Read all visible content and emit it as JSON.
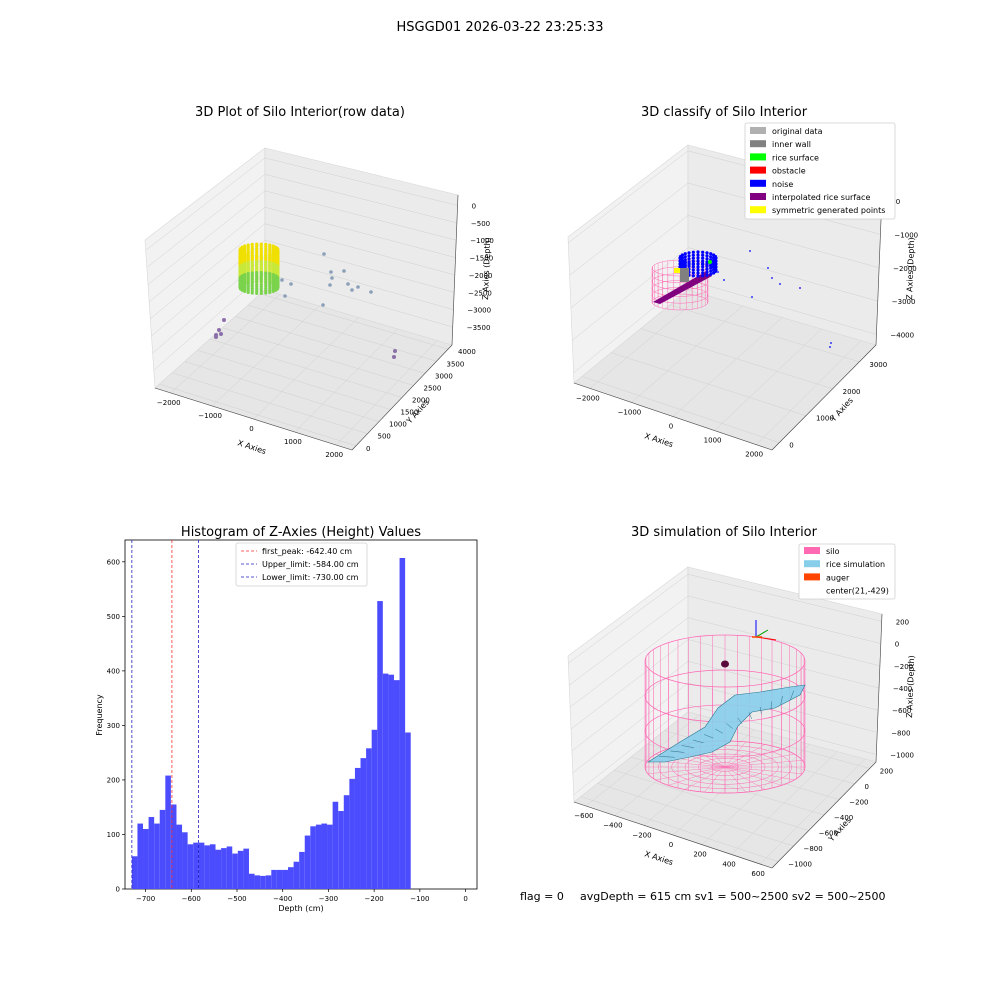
{
  "suptitle": "HSGGD01 2026-03-22 23:25:33",
  "footer": {
    "flag": "flag = 0",
    "avg": "avgDepth = 615 cm  sv1 = 500~2500  sv2 = 500~2500"
  },
  "colors": {
    "bar": "#4c4cff",
    "peak": "#ff3030",
    "limit": "#2020c0",
    "silo": "#ff69b4",
    "rice_sim": "#87ceeb",
    "auger": "#ff4500",
    "inner_wall": "#808080",
    "rice_surface": "#00ff00",
    "obstacle": "#ff0000",
    "noise": "#0000ff",
    "interp": "#800080",
    "sym": "#ffff00",
    "orig": "#b0b0b0"
  },
  "plot1": {
    "title": "3D Plot of Silo Interior(row data)",
    "xlabel": "X Axies",
    "ylabel": "Y Axies",
    "zlabel": "Z Axies (Depth)",
    "xticks": [
      "−2000",
      "−1000",
      "0",
      "1000",
      "2000"
    ],
    "yticks": [
      "0",
      "500",
      "1000",
      "1500",
      "2000",
      "2500",
      "3000",
      "3500",
      "4000"
    ],
    "zticks": [
      "0",
      "−500",
      "−1000",
      "−1500",
      "−2000",
      "−2500",
      "−3000",
      "−3500"
    ]
  },
  "plot2": {
    "title": "3D classify of Silo Interior",
    "xlabel": "X Axies",
    "ylabel": "Y Axies",
    "zlabel": "Z Axies (Depth)",
    "xticks": [
      "−2000",
      "−1000",
      "0",
      "1000",
      "2000"
    ],
    "yticks": [
      "0",
      "1000",
      "2000",
      "3000"
    ],
    "zticks": [
      "0",
      "−1000",
      "−2000",
      "−3000",
      "−4000"
    ],
    "legend": [
      "original data",
      "inner wall",
      "rice surface",
      "obstacle",
      "noise",
      "interpolated rice surface",
      "symmetric generated points"
    ]
  },
  "plot4": {
    "title": "3D simulation of Silo Interior",
    "xlabel": "X Axies",
    "ylabel": "Y Axies",
    "zlabel": "Z Axies (Depth)",
    "xticks": [
      "−600",
      "−400",
      "−200",
      "0",
      "200",
      "400",
      "600"
    ],
    "yticks": [
      "−1000",
      "−800",
      "−600",
      "−400",
      "−200",
      "0",
      "200"
    ],
    "zticks": [
      "200",
      "0",
      "−200",
      "−400",
      "−600",
      "−800",
      "−1000"
    ],
    "legend": [
      "silo",
      "rice simulation",
      "auger",
      "center(21,-429)"
    ]
  },
  "chart_data": {
    "type": "bar",
    "title": "Histogram of Z-Axies (Height) Values",
    "xlabel": "Depth (cm)",
    "ylabel": "Frequency",
    "xlim": [
      -745,
      25
    ],
    "ylim": [
      0,
      640
    ],
    "xticks": [
      -700,
      -600,
      -500,
      -400,
      -300,
      -200,
      -100,
      0
    ],
    "yticks": [
      0,
      100,
      200,
      300,
      400,
      500,
      600
    ],
    "bin_start": -730,
    "bin_width": 12.2,
    "values": [
      60,
      120,
      110,
      132,
      120,
      145,
      208,
      155,
      118,
      104,
      82,
      85,
      85,
      80,
      82,
      72,
      75,
      78,
      65,
      70,
      74,
      28,
      25,
      24,
      25,
      35,
      35,
      35,
      40,
      50,
      68,
      98,
      115,
      118,
      120,
      118,
      160,
      143,
      172,
      202,
      222,
      240,
      258,
      292,
      528,
      395,
      393,
      383,
      607,
      287
    ],
    "lines": [
      {
        "label": "first_peak: -642.40 cm",
        "value": -642.4,
        "color": "#ff3030"
      },
      {
        "label": "Upper_limit: -584.00 cm",
        "value": -584.0,
        "color": "#2020c0"
      },
      {
        "label": "Lower_limit: -730.00 cm",
        "value": -730.0,
        "color": "#2020c0"
      }
    ]
  }
}
